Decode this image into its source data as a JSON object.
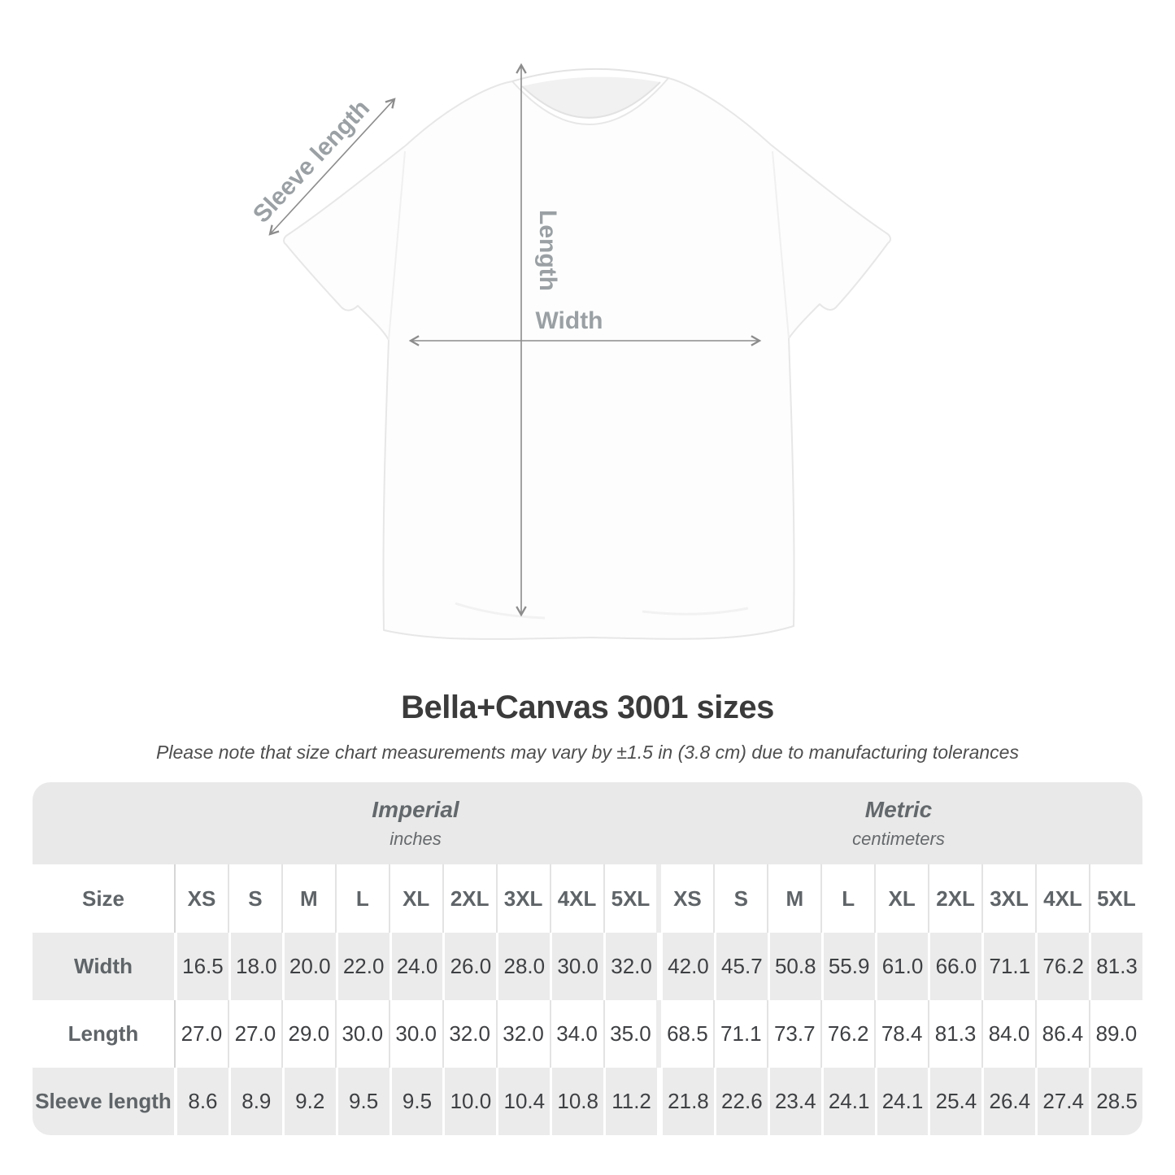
{
  "title": "Bella+Canvas 3001 sizes",
  "subtitle": "Please note that size chart measurements may vary by ±1.5 in (3.8 cm) due to manufacturing tolerances",
  "diagram": {
    "sleeve_label": "Sleeve length",
    "length_label": "Length",
    "width_label": "Width",
    "arrow_color": "#8c8c8c",
    "label_color": "#9aa0a4",
    "shirt_outline_color": "#e7e7e7"
  },
  "table": {
    "size_col_header": "Size",
    "groups": [
      {
        "label": "Imperial",
        "unit": "inches"
      },
      {
        "label": "Metric",
        "unit": "centimeters"
      }
    ],
    "sizes": [
      "XS",
      "S",
      "M",
      "L",
      "XL",
      "2XL",
      "3XL",
      "4XL",
      "5XL"
    ],
    "rows": [
      {
        "label": "Width",
        "imperial": [
          "16.5",
          "18.0",
          "20.0",
          "22.0",
          "24.0",
          "26.0",
          "28.0",
          "30.0",
          "32.0"
        ],
        "metric": [
          "42.0",
          "45.7",
          "50.8",
          "55.9",
          "61.0",
          "66.0",
          "71.1",
          "76.2",
          "81.3"
        ]
      },
      {
        "label": "Length",
        "imperial": [
          "27.0",
          "27.0",
          "29.0",
          "30.0",
          "30.0",
          "32.0",
          "32.0",
          "34.0",
          "35.0"
        ],
        "metric": [
          "68.5",
          "71.1",
          "73.7",
          "76.2",
          "78.4",
          "81.3",
          "84.0",
          "86.4",
          "89.0"
        ]
      },
      {
        "label": "Sleeve length",
        "imperial": [
          "8.6",
          "8.9",
          "9.2",
          "9.5",
          "9.5",
          "10.0",
          "10.4",
          "10.8",
          "11.2"
        ],
        "metric": [
          "21.8",
          "22.6",
          "23.4",
          "24.1",
          "24.1",
          "25.4",
          "26.4",
          "27.4",
          "28.5"
        ]
      }
    ]
  },
  "colors": {
    "band_bg": "#e9e9e9",
    "stripe_bg": "#ebebeb",
    "header_text": "#5f6468",
    "value_text": "#3e4043",
    "title_text": "#3b3b3b"
  },
  "chart_data": {
    "type": "table",
    "title": "Bella+Canvas 3001 sizes",
    "note": "Size chart measurements may vary by ±1.5 in (3.8 cm) due to manufacturing tolerances",
    "column_groups": [
      "Imperial (inches)",
      "Metric (centimeters)"
    ],
    "sizes": [
      "XS",
      "S",
      "M",
      "L",
      "XL",
      "2XL",
      "3XL",
      "4XL",
      "5XL"
    ],
    "rows": [
      {
        "measure": "Width",
        "imperial_in": [
          16.5,
          18.0,
          20.0,
          22.0,
          24.0,
          26.0,
          28.0,
          30.0,
          32.0
        ],
        "metric_cm": [
          42.0,
          45.7,
          50.8,
          55.9,
          61.0,
          66.0,
          71.1,
          76.2,
          81.3
        ]
      },
      {
        "measure": "Length",
        "imperial_in": [
          27.0,
          27.0,
          29.0,
          30.0,
          30.0,
          32.0,
          32.0,
          34.0,
          35.0
        ],
        "metric_cm": [
          68.5,
          71.1,
          73.7,
          76.2,
          78.4,
          81.3,
          84.0,
          86.4,
          89.0
        ]
      },
      {
        "measure": "Sleeve length",
        "imperial_in": [
          8.6,
          8.9,
          9.2,
          9.5,
          9.5,
          10.0,
          10.4,
          10.8,
          11.2
        ],
        "metric_cm": [
          21.8,
          22.6,
          23.4,
          24.1,
          24.1,
          25.4,
          26.4,
          27.4,
          28.5
        ]
      }
    ]
  }
}
